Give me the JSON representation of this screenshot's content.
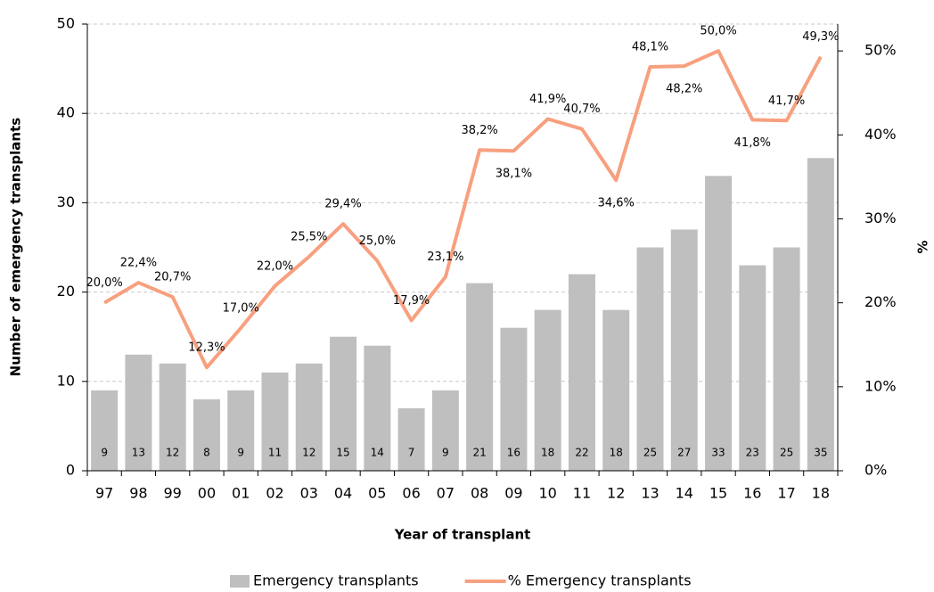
{
  "chart_data": {
    "type": "bar_line",
    "x_label": "Year of transplant",
    "y_label": "Number of emergency transplants",
    "y2_label": "%",
    "categories": [
      "97",
      "98",
      "99",
      "00",
      "01",
      "02",
      "03",
      "04",
      "05",
      "06",
      "07",
      "08",
      "09",
      "10",
      "11",
      "12",
      "13",
      "14",
      "15",
      "16",
      "17",
      "18"
    ],
    "series": [
      {
        "name": "Emergency transplants",
        "type": "bar",
        "color": "#bfbfbf",
        "values": [
          9,
          13,
          12,
          8,
          9,
          11,
          12,
          15,
          14,
          7,
          9,
          21,
          16,
          18,
          22,
          18,
          25,
          27,
          33,
          23,
          25,
          35
        ]
      },
      {
        "name": "% Emergency transplants",
        "type": "line",
        "axis": "y2",
        "color": "#f7a07f",
        "values": [
          20.0,
          22.4,
          20.7,
          12.3,
          17.0,
          22.0,
          25.5,
          29.4,
          25.0,
          17.9,
          23.1,
          38.2,
          38.1,
          41.9,
          40.7,
          34.6,
          48.1,
          48.2,
          50.0,
          41.8,
          41.7,
          49.3
        ],
        "value_labels": [
          "20,0%",
          "22,4%",
          "20,7%",
          "12,3%",
          "17,0%",
          "22,0%",
          "25,5%",
          "29,4%",
          "25,0%",
          "17,9%",
          "23,1%",
          "38,2%",
          "38,1%",
          "41,9%",
          "40,7%",
          "34,6%",
          "48,1%",
          "48,2%",
          "50,0%",
          "41,8%",
          "41,7%",
          "49,3%"
        ]
      }
    ],
    "ylim": [
      0,
      50
    ],
    "yticks": [
      0,
      10,
      20,
      30,
      40,
      50
    ],
    "y2lim": [
      0,
      53.2
    ],
    "y2ticks": [
      {
        "value": 0,
        "label": "0%"
      },
      {
        "value": 10,
        "label": "10%"
      },
      {
        "value": 20,
        "label": "20%"
      },
      {
        "value": 30,
        "label": "30%"
      },
      {
        "value": 40,
        "label": "40%"
      },
      {
        "value": 50,
        "label": "50%"
      }
    ],
    "grid": true,
    "legend": "bottom"
  }
}
